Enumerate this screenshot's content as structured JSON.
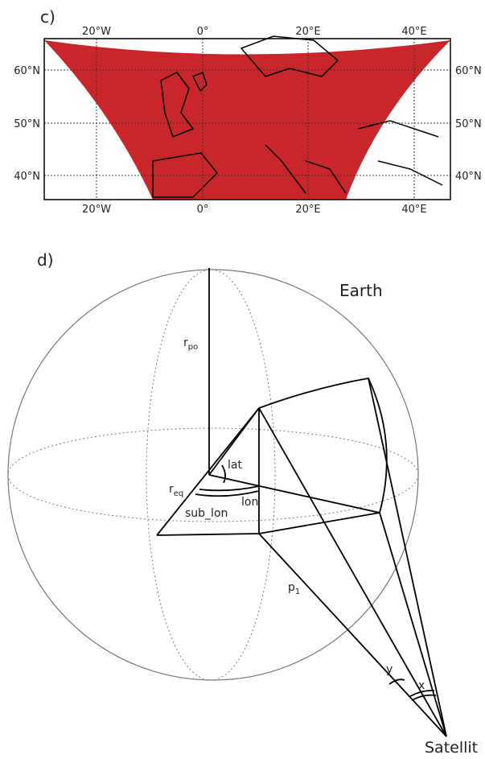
{
  "panel_c": {
    "label": "c)",
    "top_ticks": [
      "20°W",
      "0°",
      "20°E",
      "40°E"
    ],
    "bottom_ticks": [
      "20°W",
      "0°",
      "20°E",
      "40°E"
    ],
    "left_ticks": [
      "60°N",
      "50°N",
      "40°N"
    ],
    "right_ticks": [
      "60°N",
      "50°N",
      "40°N"
    ]
  },
  "panel_d": {
    "label": "d)",
    "earth": "Earth",
    "r_po": {
      "base": "r",
      "sub": "po"
    },
    "lat": "lat",
    "r_eq": {
      "base": "r",
      "sub": "eq"
    },
    "lon": "lon",
    "sub_lon": "sub_lon",
    "p_1": {
      "base": "p",
      "sub": "1"
    },
    "y": "y",
    "x": "x",
    "satellite": "Satellit"
  }
}
